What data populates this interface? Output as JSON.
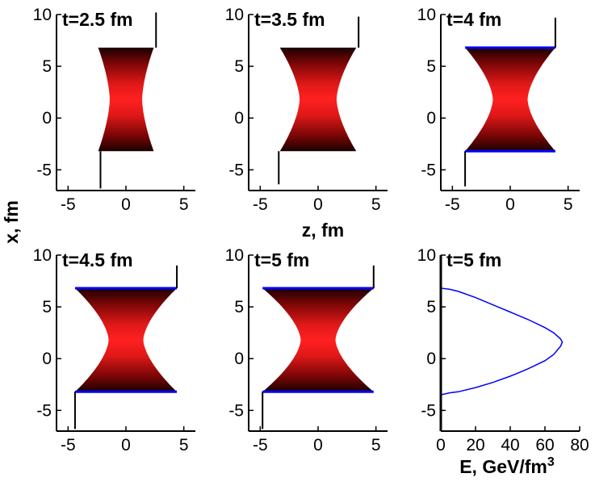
{
  "colors": {
    "background": "#ffffff",
    "axis": "#000000",
    "fill_edge": "#1a0000",
    "fill_center": "#ff2020",
    "boundary_line": "#0000ff",
    "curve_line": "#0000ff"
  },
  "figure": {
    "xlabel_shared": "z, fm",
    "ylabel_shared": "x, fm"
  },
  "chart_data": [
    {
      "type": "area",
      "title": "t=2.5 fm",
      "xlim": [
        -6,
        6
      ],
      "ylim": [
        -7,
        10
      ],
      "xticks": [
        -5,
        0,
        5
      ],
      "yticks": [
        -5,
        0,
        5,
        10
      ],
      "x_top": 6.8,
      "x_bottom": -3.2,
      "half_width_at_edges": 2.4,
      "half_width_min": 1.4,
      "waist_x": 1.8,
      "boundary_lines": false,
      "left_stub": {
        "z": -2.2,
        "from": -3.2,
        "to": -6.8
      },
      "right_stub": {
        "z": 2.6,
        "from": 6.8,
        "to": 10.2
      }
    },
    {
      "type": "area",
      "title": "t=3.5 fm",
      "xlim": [
        -6,
        6
      ],
      "ylim": [
        -7,
        10
      ],
      "xticks": [
        -5,
        0,
        5
      ],
      "yticks": [
        -5,
        0,
        5,
        10
      ],
      "x_top": 6.8,
      "x_bottom": -3.2,
      "half_width_at_edges": 3.3,
      "half_width_min": 1.6,
      "waist_x": 1.8,
      "boundary_lines": false,
      "left_stub": {
        "z": -3.4,
        "from": -3.2,
        "to": -6.4
      },
      "right_stub": {
        "z": 3.5,
        "from": 6.8,
        "to": 9.8
      }
    },
    {
      "type": "area",
      "title": "t=4 fm",
      "xlim": [
        -6,
        6
      ],
      "ylim": [
        -7,
        10
      ],
      "xticks": [
        -5,
        0,
        5
      ],
      "yticks": [
        -5,
        0,
        5,
        10
      ],
      "x_top": 6.8,
      "x_bottom": -3.2,
      "half_width_at_edges": 3.9,
      "half_width_min": 1.5,
      "waist_x": 1.8,
      "boundary_lines": true,
      "left_stub": {
        "z": -3.9,
        "from": -3.2,
        "to": -6.6
      },
      "right_stub": {
        "z": 3.9,
        "from": 6.8,
        "to": 9.7
      }
    },
    {
      "type": "area",
      "title": "t=4.5 fm",
      "xlim": [
        -6,
        6
      ],
      "ylim": [
        -7,
        10
      ],
      "xticks": [
        -5,
        0,
        5
      ],
      "yticks": [
        -5,
        0,
        5,
        10
      ],
      "x_top": 6.8,
      "x_bottom": -3.2,
      "half_width_at_edges": 4.4,
      "half_width_min": 1.5,
      "waist_x": 1.8,
      "boundary_lines": true,
      "left_stub": {
        "z": -4.4,
        "from": -3.2,
        "to": -6.8
      },
      "right_stub": {
        "z": 4.4,
        "from": 6.8,
        "to": 9.0
      }
    },
    {
      "type": "area",
      "title": "t=5 fm",
      "xlim": [
        -6,
        6
      ],
      "ylim": [
        -7,
        10
      ],
      "xticks": [
        -5,
        0,
        5
      ],
      "yticks": [
        -5,
        0,
        5,
        10
      ],
      "x_top": 6.8,
      "x_bottom": -3.2,
      "half_width_at_edges": 4.8,
      "half_width_min": 1.5,
      "waist_x": 1.8,
      "boundary_lines": true,
      "left_stub": {
        "z": -4.8,
        "from": -3.2,
        "to": -6.8
      },
      "right_stub": {
        "z": 4.8,
        "from": 6.8,
        "to": 9.0
      }
    },
    {
      "type": "line",
      "title": "t=5 fm",
      "xlabel": "E, GeV/fm",
      "xlabel_superscript": "3",
      "xlim": [
        0,
        80
      ],
      "ylim": [
        -7,
        10
      ],
      "xticks": [
        0,
        20,
        40,
        60,
        80
      ],
      "yticks": [
        -5,
        0,
        5,
        10
      ],
      "series": [
        {
          "x": [
            0,
            5,
            10,
            20,
            30,
            40,
            50,
            60,
            65,
            69,
            70,
            69,
            65,
            60,
            50,
            40,
            30,
            20,
            10,
            5,
            0
          ],
          "y": [
            6.8,
            6.7,
            6.5,
            5.9,
            5.2,
            4.5,
            3.8,
            3.0,
            2.5,
            1.9,
            1.6,
            1.2,
            0.4,
            -0.2,
            -1.0,
            -1.7,
            -2.3,
            -2.8,
            -3.2,
            -3.3,
            -3.5
          ]
        }
      ],
      "axis_stub": {
        "z": 0,
        "from": -7,
        "to": 10
      }
    }
  ]
}
